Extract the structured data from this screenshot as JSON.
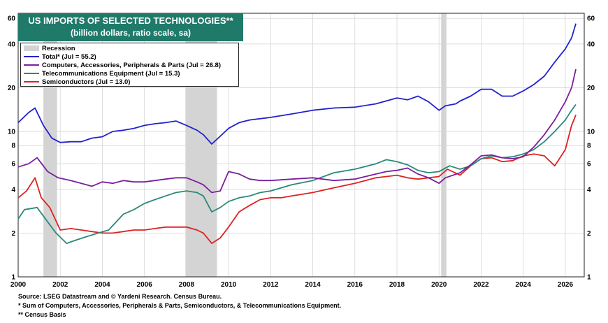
{
  "chart_data": {
    "type": "line",
    "title": "US IMPORTS OF SELECTED TECHNOLOGIES**",
    "subtitle": "(billion dollars, ratio scale, sa)",
    "scale": "log",
    "ylim": [
      1,
      65
    ],
    "xlim": [
      2000,
      2026.9
    ],
    "yticks": [
      1,
      2,
      4,
      6,
      8,
      10,
      20,
      40,
      60
    ],
    "xticks": [
      2000,
      2002,
      2004,
      2006,
      2008,
      2010,
      2012,
      2014,
      2016,
      2018,
      2020,
      2022,
      2024,
      2026
    ],
    "recessions": [
      [
        2001.2,
        2001.85
      ],
      [
        2007.95,
        2009.45
      ],
      [
        2020.1,
        2020.35
      ]
    ],
    "legend_recession": "Recession",
    "legend_placement": "top-left",
    "grid": true,
    "series": [
      {
        "name": "Total* (Jul = 55.2)",
        "color": "#2222cc",
        "x": [
          2000,
          2000.5,
          2000.8,
          2001.2,
          2001.6,
          2002,
          2002.5,
          2003,
          2003.5,
          2004,
          2004.5,
          2005,
          2005.5,
          2006,
          2006.5,
          2007,
          2007.5,
          2008,
          2008.5,
          2008.8,
          2009.2,
          2009.5,
          2010,
          2010.5,
          2011,
          2012,
          2013,
          2014,
          2015,
          2016,
          2017,
          2018,
          2018.5,
          2019,
          2019.5,
          2020,
          2020.3,
          2020.8,
          2021,
          2021.5,
          2022,
          2022.5,
          2023,
          2023.5,
          2024,
          2024.5,
          2025,
          2025.5,
          2026,
          2026.3,
          2026.5
        ],
        "values": [
          11.5,
          13.5,
          14.5,
          11,
          9,
          8.4,
          8.5,
          8.5,
          9,
          9.2,
          10,
          10.2,
          10.5,
          11,
          11.3,
          11.5,
          11.8,
          11,
          10.2,
          9.5,
          8.2,
          9,
          10.5,
          11.5,
          12,
          12.5,
          13.2,
          14,
          14.5,
          14.7,
          15.5,
          17,
          16.5,
          17.5,
          16,
          14,
          15,
          15.5,
          16.2,
          17.5,
          19.5,
          19.5,
          17.5,
          17.5,
          19,
          21,
          24,
          30,
          37,
          44,
          55.2
        ]
      },
      {
        "name": "Computers, Accessories, Peripherals & Parts (Jul = 26.8)",
        "color": "#7a1fa0",
        "x": [
          2000,
          2000.5,
          2000.9,
          2001.4,
          2001.9,
          2002.5,
          2003,
          2003.5,
          2004,
          2004.5,
          2005,
          2005.5,
          2006,
          2006.5,
          2007,
          2007.5,
          2008,
          2008.5,
          2008.8,
          2009.2,
          2009.6,
          2010,
          2010.5,
          2011,
          2011.5,
          2012,
          2013,
          2014,
          2015,
          2016,
          2017,
          2017.5,
          2018,
          2018.5,
          2019,
          2019.5,
          2020,
          2020.3,
          2021,
          2021.5,
          2022,
          2022.5,
          2023,
          2023.5,
          2024,
          2024.5,
          2025,
          2025.5,
          2026,
          2026.3,
          2026.5
        ],
        "values": [
          5.7,
          6.0,
          6.6,
          5.3,
          4.8,
          4.6,
          4.4,
          4.2,
          4.5,
          4.4,
          4.6,
          4.5,
          4.5,
          4.6,
          4.7,
          4.8,
          4.8,
          4.5,
          4.3,
          3.8,
          3.9,
          5.3,
          5.1,
          4.7,
          4.6,
          4.6,
          4.7,
          4.8,
          4.6,
          4.7,
          5.1,
          5.3,
          5.4,
          5.6,
          5.1,
          4.8,
          4.4,
          4.8,
          5.2,
          5.9,
          6.8,
          6.9,
          6.6,
          6.5,
          6.7,
          7.8,
          9.5,
          12,
          16,
          20,
          26.8
        ]
      },
      {
        "name": "Telecommunications Equipment (Jul = 15.3)",
        "color": "#2a8a78",
        "x": [
          2000,
          2000.3,
          2000.9,
          2001.3,
          2001.8,
          2002.3,
          2002.8,
          2003.3,
          2003.8,
          2004.3,
          2005,
          2005.5,
          2006,
          2006.5,
          2007,
          2007.5,
          2008,
          2008.5,
          2008.8,
          2009.2,
          2009.6,
          2010,
          2010.5,
          2011,
          2011.5,
          2012,
          2013,
          2014,
          2015,
          2016,
          2017,
          2017.5,
          2018,
          2018.5,
          2019,
          2019.5,
          2020,
          2020.5,
          2021,
          2021.5,
          2022,
          2022.5,
          2023,
          2023.5,
          2024,
          2024.5,
          2025,
          2025.5,
          2026,
          2026.3,
          2026.5
        ],
        "values": [
          2.5,
          2.9,
          3.0,
          2.5,
          2.0,
          1.7,
          1.8,
          1.9,
          2.0,
          2.1,
          2.7,
          2.9,
          3.2,
          3.4,
          3.6,
          3.8,
          3.9,
          3.8,
          3.6,
          2.8,
          3.0,
          3.3,
          3.5,
          3.6,
          3.8,
          3.9,
          4.3,
          4.6,
          5.2,
          5.5,
          6.0,
          6.4,
          6.2,
          5.9,
          5.4,
          5.2,
          5.3,
          5.8,
          5.5,
          5.8,
          6.5,
          6.8,
          6.6,
          6.7,
          7.0,
          7.5,
          8.5,
          10,
          12,
          14,
          15.3
        ]
      },
      {
        "name": "Semiconductors (Jul = 13.0)",
        "color": "#dd2222",
        "x": [
          2000,
          2000.4,
          2000.8,
          2001.1,
          2001.5,
          2002,
          2002.5,
          2003,
          2003.5,
          2004,
          2004.5,
          2005,
          2005.5,
          2006,
          2006.5,
          2007,
          2007.5,
          2008,
          2008.5,
          2008.8,
          2009.2,
          2009.6,
          2010,
          2010.5,
          2011,
          2011.5,
          2012,
          2012.5,
          2013,
          2014,
          2015,
          2016,
          2016.5,
          2017,
          2017.5,
          2018,
          2018.5,
          2019,
          2019.5,
          2020,
          2020.4,
          2021,
          2021.5,
          2022,
          2022.5,
          2023,
          2023.5,
          2024,
          2024.5,
          2025,
          2025.5,
          2026,
          2026.3,
          2026.5
        ],
        "values": [
          3.5,
          3.9,
          4.8,
          3.5,
          3.0,
          2.1,
          2.15,
          2.1,
          2.05,
          2.0,
          2.0,
          2.05,
          2.1,
          2.1,
          2.15,
          2.2,
          2.2,
          2.2,
          2.1,
          2.0,
          1.7,
          1.85,
          2.2,
          2.8,
          3.1,
          3.4,
          3.5,
          3.5,
          3.6,
          3.8,
          4.1,
          4.4,
          4.6,
          4.8,
          4.9,
          5.0,
          4.8,
          4.7,
          4.8,
          4.9,
          5.5,
          5.0,
          5.8,
          6.5,
          6.6,
          6.2,
          6.3,
          6.8,
          7.0,
          6.8,
          5.8,
          7.5,
          11,
          13.0
        ]
      }
    ]
  },
  "footer": {
    "line1": "Source: LSEG Datastream and © Yardeni Research. Census Bureau.",
    "line2": "* Sum of Computers, Accessories, Peripherals & Parts, Semiconductors, & Telecommunications Equipment.",
    "line3": "** Census Basis"
  }
}
